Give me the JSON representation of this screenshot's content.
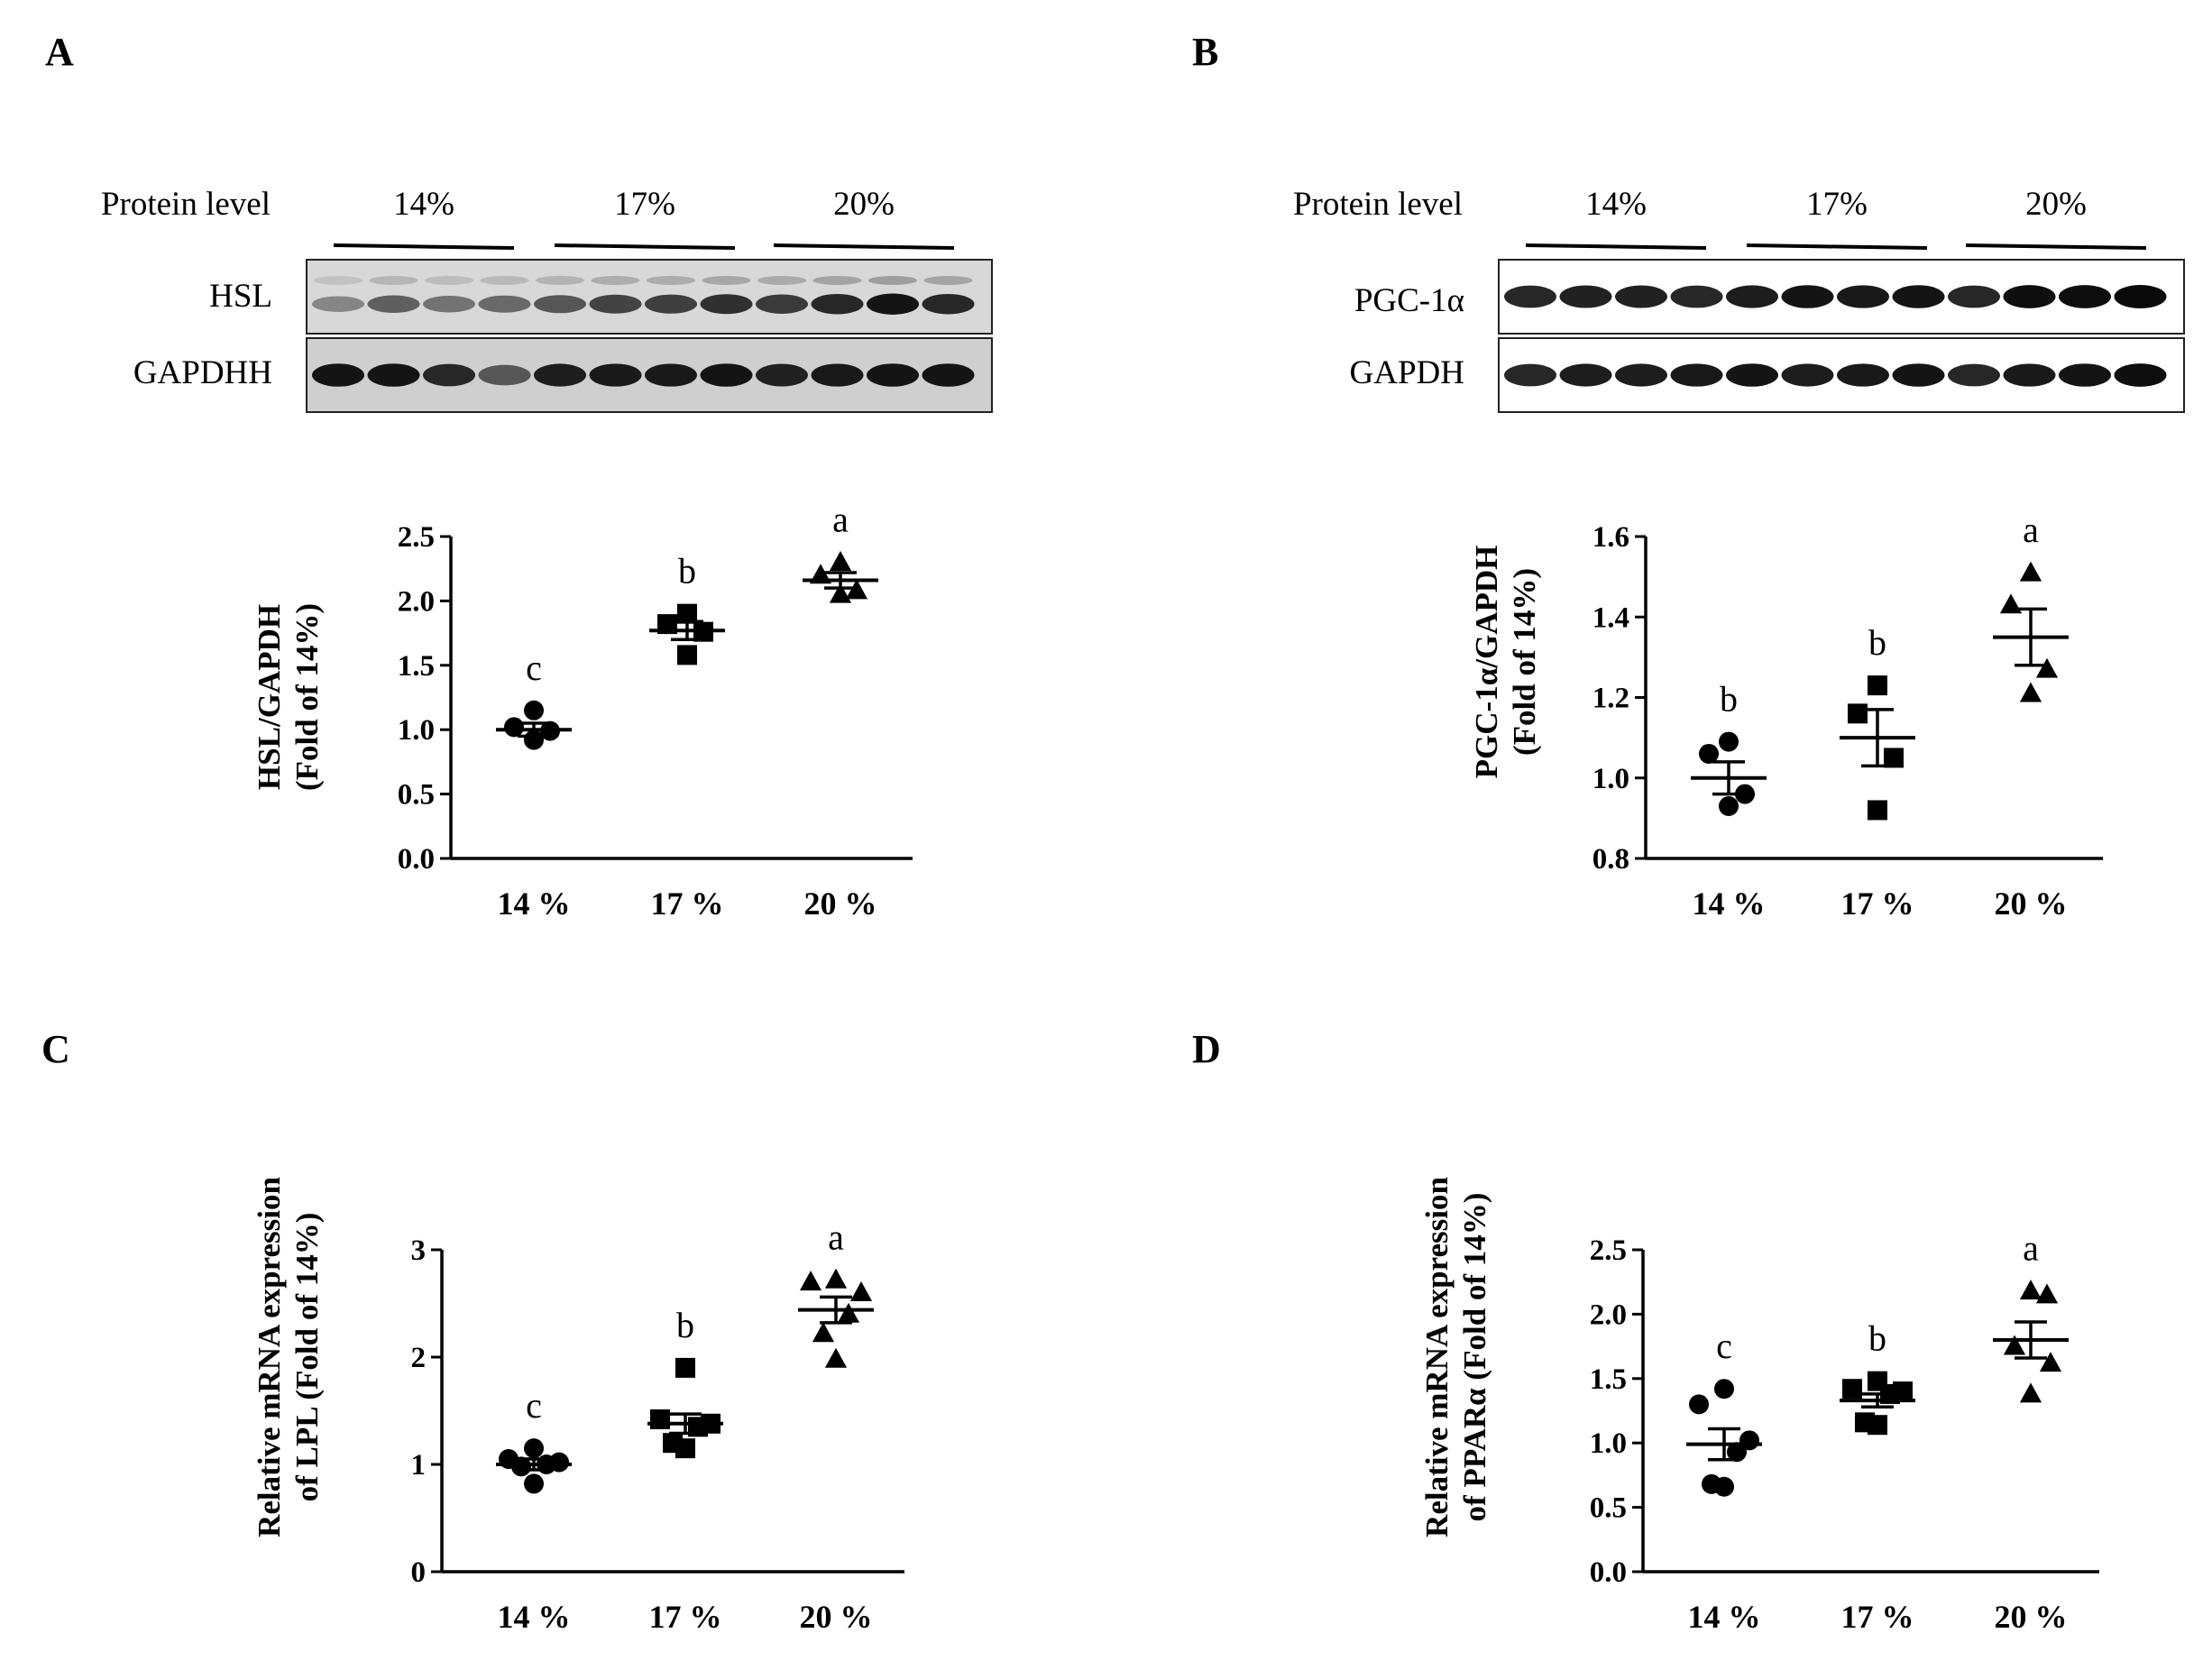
{
  "panel_labels": [
    "A",
    "B",
    "C",
    "D"
  ],
  "blots": [
    {
      "header_label": "Protein level",
      "groups": [
        "14%",
        "17%",
        "20%"
      ],
      "bands": [
        {
          "label": "HSL",
          "style": "faint",
          "intensities": [
            0.35,
            0.55,
            0.45,
            0.5,
            0.6,
            0.7,
            0.72,
            0.8,
            0.75,
            0.85,
            0.95,
            0.85
          ]
        },
        {
          "label": "GAPDHH",
          "style": "dark",
          "intensities": [
            0.95,
            0.95,
            0.85,
            0.6,
            0.9,
            0.92,
            0.92,
            0.95,
            0.88,
            0.92,
            0.95,
            0.95
          ]
        }
      ]
    },
    {
      "header_label": "Protein level",
      "groups": [
        "14%",
        "17%",
        "20%"
      ],
      "bands": [
        {
          "label": "PGC-1α",
          "style": "boxed",
          "intensities": [
            0.85,
            0.88,
            0.88,
            0.85,
            0.9,
            0.95,
            0.92,
            0.95,
            0.85,
            0.98,
            0.98,
            1.0
          ]
        },
        {
          "label": "GAPDH",
          "style": "boxed",
          "intensities": [
            0.85,
            0.9,
            0.9,
            0.92,
            0.95,
            0.9,
            0.92,
            0.95,
            0.85,
            0.92,
            0.95,
            0.98
          ]
        }
      ]
    }
  ],
  "chart_data": [
    {
      "type": "scatter",
      "panel": "A",
      "title": "",
      "ylabel_lines": [
        "HSL/GAPDH",
        "(Fold of 14%)"
      ],
      "xlabel": "",
      "categories": [
        "14 %",
        "17 %",
        "20 %"
      ],
      "ylim": [
        0,
        2.5
      ],
      "yticks": [
        0,
        0.5,
        1,
        1.5,
        2,
        2.5
      ],
      "ytick_labels": [
        "0.0",
        "0.5",
        "1.0",
        "1.5",
        "2.0",
        "2.5"
      ],
      "series": [
        {
          "name": "14 %",
          "marker": "circle",
          "points": [
            1.15,
            1.02,
            0.99,
            0.92
          ],
          "mean": 1.0,
          "sem": 0.05,
          "letter": "c"
        },
        {
          "name": "17 %",
          "marker": "square",
          "points": [
            1.9,
            1.82,
            1.76,
            1.58
          ],
          "mean": 1.77,
          "sem": 0.07,
          "letter": "b"
        },
        {
          "name": "20 %",
          "marker": "triangle",
          "points": [
            2.3,
            2.2,
            2.08,
            2.05
          ],
          "mean": 2.16,
          "sem": 0.06,
          "letter": "a"
        }
      ]
    },
    {
      "type": "scatter",
      "panel": "B",
      "title": "",
      "ylabel_lines": [
        "PGC-1α/GAPDH",
        "(Fold of 14%)"
      ],
      "xlabel": "",
      "categories": [
        "14 %",
        "17 %",
        "20 %"
      ],
      "ylim": [
        0.8,
        1.6
      ],
      "yticks": [
        0.8,
        1.0,
        1.2,
        1.4,
        1.6
      ],
      "ytick_labels": [
        "0.8",
        "1.0",
        "1.2",
        "1.4",
        "1.6"
      ],
      "series": [
        {
          "name": "14 %",
          "marker": "circle",
          "points": [
            1.09,
            1.06,
            0.96,
            0.93
          ],
          "mean": 1.0,
          "sem": 0.04,
          "letter": "b"
        },
        {
          "name": "17 %",
          "marker": "square",
          "points": [
            1.23,
            1.16,
            1.05,
            0.92
          ],
          "mean": 1.1,
          "sem": 0.07,
          "letter": "b"
        },
        {
          "name": "20 %",
          "marker": "triangle",
          "points": [
            1.51,
            1.43,
            1.27,
            1.21
          ],
          "mean": 1.35,
          "sem": 0.07,
          "letter": "a"
        }
      ]
    },
    {
      "type": "scatter",
      "panel": "C",
      "title": "",
      "ylabel_lines": [
        "Relative mRNA expression",
        "of  LPL (Fold of 14%)"
      ],
      "xlabel": "",
      "categories": [
        "14 %",
        "17 %",
        "20 %"
      ],
      "ylim": [
        0,
        3
      ],
      "yticks": [
        0,
        1,
        2,
        3
      ],
      "ytick_labels": [
        "0",
        "1",
        "2",
        "3"
      ],
      "series": [
        {
          "name": "14 %",
          "marker": "circle",
          "points": [
            1.15,
            1.05,
            1.02,
            1.0,
            0.98,
            0.82
          ],
          "mean": 1.0,
          "sem": 0.05,
          "letter": "c"
        },
        {
          "name": "17 %",
          "marker": "square",
          "points": [
            1.9,
            1.42,
            1.38,
            1.35,
            1.2,
            1.15
          ],
          "mean": 1.38,
          "sem": 0.09,
          "letter": "b"
        },
        {
          "name": "20 %",
          "marker": "triangle",
          "points": [
            2.72,
            2.7,
            2.6,
            2.4,
            2.22,
            1.98
          ],
          "mean": 2.44,
          "sem": 0.12,
          "letter": "a"
        }
      ]
    },
    {
      "type": "scatter",
      "panel": "D",
      "title": "",
      "ylabel_lines": [
        "Relative mRNA expression",
        "of  PPARα (Fold of 14%)"
      ],
      "xlabel": "",
      "categories": [
        "14 %",
        "17 %",
        "20 %"
      ],
      "ylim": [
        0,
        2.5
      ],
      "yticks": [
        0,
        0.5,
        1,
        1.5,
        2,
        2.5
      ],
      "ytick_labels": [
        "0.0",
        "0.5",
        "1.0",
        "1.5",
        "2.0",
        "2.5"
      ],
      "series": [
        {
          "name": "14 %",
          "marker": "circle",
          "points": [
            1.42,
            1.3,
            1.02,
            0.93,
            0.68,
            0.66
          ],
          "mean": 0.99,
          "sem": 0.12,
          "letter": "c"
        },
        {
          "name": "17 %",
          "marker": "square",
          "points": [
            1.48,
            1.42,
            1.4,
            1.38,
            1.16,
            1.14
          ],
          "mean": 1.33,
          "sem": 0.05,
          "letter": "b"
        },
        {
          "name": "20 %",
          "marker": "triangle",
          "points": [
            2.18,
            2.15,
            1.75,
            1.62,
            1.38
          ],
          "mean": 1.8,
          "sem": 0.14,
          "letter": "a"
        }
      ]
    }
  ]
}
